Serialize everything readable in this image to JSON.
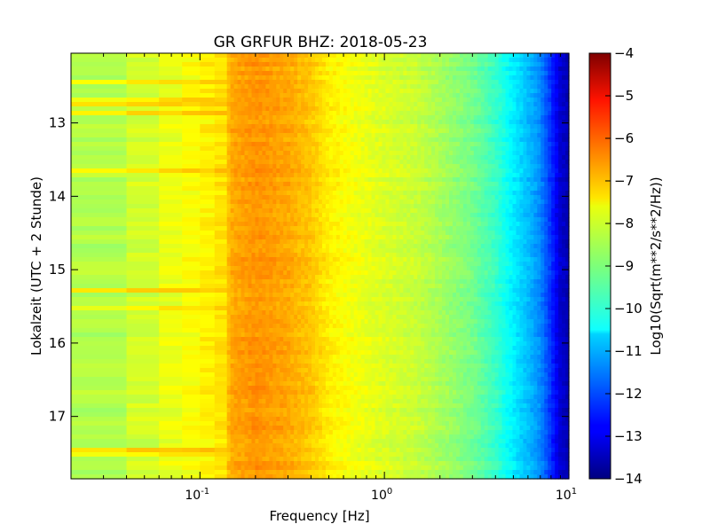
{
  "chart_data": {
    "type": "heatmap",
    "title": "GR GRFUR BHZ: 2018-05-23",
    "xlabel": "Frequency [Hz]",
    "ylabel": "Lokalzeit (UTC + 2 Stunde)",
    "x_scale": "log",
    "xlim": [
      0.02,
      10
    ],
    "x_ticks": [
      {
        "value": 0.1,
        "base": "10",
        "exp": "-1"
      },
      {
        "value": 1,
        "base": "10",
        "exp": "0"
      },
      {
        "value": 10,
        "base": "10",
        "exp": "1"
      }
    ],
    "ylim": [
      12.05,
      17.85
    ],
    "y_inverted": true,
    "y_ticks": [
      "13",
      "14",
      "15",
      "16",
      "17"
    ],
    "colorbar": {
      "label": "Log10(Sqrt(m**2/s**2/Hz))",
      "range": [
        -14,
        -4
      ],
      "ticks": [
        "-4",
        "-5",
        "-6",
        "-7",
        "-8",
        "-9",
        "-10",
        "-11",
        "-12",
        "-13",
        "-14"
      ],
      "colormap": "jet"
    },
    "spectrum_profile": {
      "frequency_hz": [
        0.02,
        0.04,
        0.06,
        0.08,
        0.1,
        0.13,
        0.15,
        0.2,
        0.25,
        0.3,
        0.4,
        0.5,
        0.7,
        1,
        1.5,
        2,
        3,
        4,
        5,
        6,
        7,
        8,
        9,
        10
      ],
      "log10_amplitude": [
        -8.6,
        -8.4,
        -8.0,
        -7.9,
        -7.7,
        -7.5,
        -6.9,
        -6.7,
        -6.8,
        -6.9,
        -7.2,
        -7.6,
        -7.9,
        -8.1,
        -8.3,
        -8.6,
        -9.1,
        -9.7,
        -10.4,
        -10.9,
        -11.4,
        -12.3,
        -13.2,
        -13.5
      ]
    },
    "grid": false
  }
}
